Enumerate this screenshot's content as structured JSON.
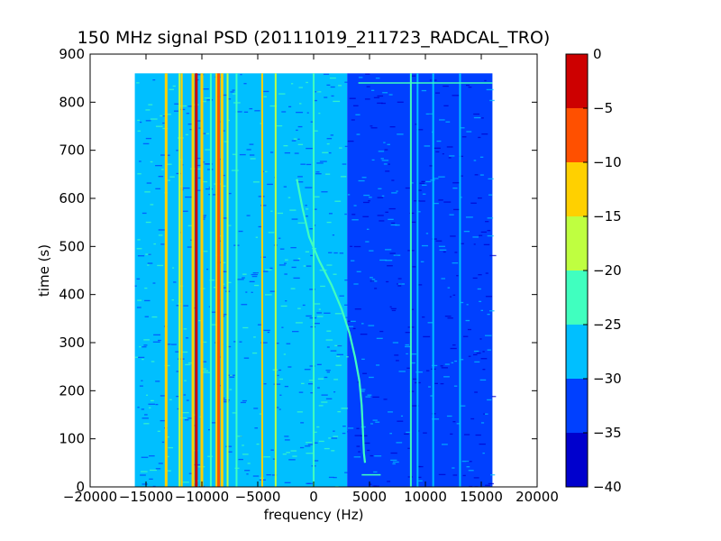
{
  "chart_data": {
    "type": "heatmap",
    "title": "150 MHz signal PSD (20111019_211723_RADCAL_TRO)",
    "xlabel": "frequency (Hz)",
    "ylabel": "time (s)",
    "xlim": [
      -20000,
      20000
    ],
    "ylim": [
      0,
      900
    ],
    "xticks": [
      -20000,
      -15000,
      -10000,
      -5000,
      0,
      5000,
      10000,
      15000,
      20000
    ],
    "yticks": [
      0,
      100,
      200,
      300,
      400,
      500,
      600,
      700,
      800,
      900
    ],
    "data_extent": {
      "x": [
        -16000,
        16000
      ],
      "y": [
        0,
        860
      ]
    },
    "grid": false,
    "colorbar": {
      "levels": [
        -40,
        -35,
        -30,
        -25,
        -20,
        -15,
        -10,
        -5,
        0
      ],
      "ticks": [
        0,
        -5,
        -10,
        -15,
        -20,
        -25,
        -30,
        -35,
        -40
      ],
      "colors": [
        "#0000cd",
        "#0040ff",
        "#00bfff",
        "#40ffbf",
        "#bfff40",
        "#ffd000",
        "#ff5000",
        "#cd0000"
      ]
    },
    "background_levels": [
      {
        "x": [
          -16000,
          3000
        ],
        "level": -27.5,
        "color": "#00bfff"
      },
      {
        "x": [
          3000,
          16000
        ],
        "level": -32.5,
        "color": "#0040ff"
      }
    ],
    "vertical_lines": [
      {
        "x": -13200,
        "level": -12.5,
        "color": "#ffd000"
      },
      {
        "x": -12000,
        "level": -20,
        "color": "#bfff40"
      },
      {
        "x": -11800,
        "level": -17.5,
        "color": "#ffd000"
      },
      {
        "x": -10800,
        "level": -12.5,
        "color": "#ffd000"
      },
      {
        "x": -10500,
        "level": -7.5,
        "color": "#cd0000"
      },
      {
        "x": -10000,
        "level": -12.5,
        "color": "#ffd000"
      },
      {
        "x": -9200,
        "level": -22.5,
        "color": "#40ffbf"
      },
      {
        "x": -8700,
        "level": -17.5,
        "color": "#ffd000"
      },
      {
        "x": -8500,
        "level": -7.5,
        "color": "#ff5000"
      },
      {
        "x": -8200,
        "level": -12.5,
        "color": "#ffd000"
      },
      {
        "x": -7700,
        "level": -20,
        "color": "#bfff40"
      },
      {
        "x": -6900,
        "level": -22.5,
        "color": "#40ffbf"
      },
      {
        "x": -4600,
        "level": -17.5,
        "color": "#ffd000"
      },
      {
        "x": -3400,
        "level": -20,
        "color": "#bfff40"
      },
      {
        "x": 0,
        "level": -22.5,
        "color": "#40ffbf"
      },
      {
        "x": 8700,
        "level": -25,
        "color": "#40ffbf"
      },
      {
        "x": 9300,
        "level": -27.5,
        "color": "#00bfff"
      },
      {
        "x": 10700,
        "level": -27.5,
        "color": "#00bfff"
      },
      {
        "x": 13100,
        "level": -27.5,
        "color": "#00bfff"
      }
    ],
    "drifting_signal": {
      "level": -22.5,
      "color": "#40ffbf",
      "points": [
        [
          -1500,
          640
        ],
        [
          -1000,
          580
        ],
        [
          -400,
          520
        ],
        [
          500,
          470
        ],
        [
          1600,
          420
        ],
        [
          2500,
          370
        ],
        [
          3200,
          320
        ],
        [
          3700,
          270
        ],
        [
          4100,
          220
        ],
        [
          4300,
          170
        ],
        [
          4400,
          120
        ],
        [
          4500,
          70
        ],
        [
          4600,
          50
        ]
      ]
    },
    "horizontal_segments": [
      {
        "x": [
          4000,
          16000
        ],
        "y": 840,
        "level": -25,
        "color": "#40ffbf"
      },
      {
        "x": [
          4300,
          6000
        ],
        "y": 25,
        "level": -25,
        "color": "#40ffbf"
      }
    ]
  }
}
